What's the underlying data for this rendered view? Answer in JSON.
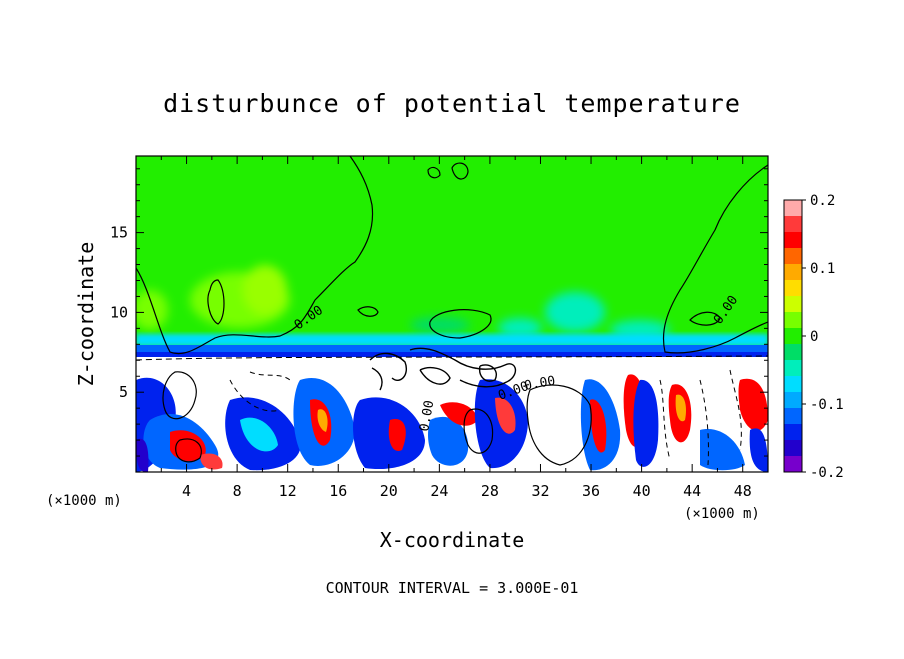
{
  "chart_data": {
    "type": "heatmap",
    "title": "disturbunce of potential temperature",
    "xlabel": "X-coordinate",
    "ylabel": "Z-coordinate",
    "x_unit": "(×1000 m)",
    "z_unit": "(×1000 m)",
    "xlim": [
      0,
      50
    ],
    "ylim": [
      0,
      19.8
    ],
    "x_ticks": [
      4,
      8,
      12,
      16,
      20,
      24,
      28,
      32,
      36,
      40,
      44,
      48
    ],
    "y_ticks": [
      5,
      10,
      15
    ],
    "footer": "CONTOUR INTERVAL = 3.000E-01",
    "contour_interval": 0.3,
    "contour_labels": [
      "0.00",
      "0.00",
      "0.00",
      "0.00",
      "0.00"
    ],
    "colorbar": {
      "range": [
        -0.2,
        0.2
      ],
      "ticks": [
        "0.2",
        "0.1",
        "0",
        "-0.1",
        "-0.2"
      ],
      "colors": [
        "#ffaaaa",
        "#ff3a3a",
        "#ff0000",
        "#ff6600",
        "#ffaa00",
        "#ffdd00",
        "#ccff00",
        "#77ff00",
        "#22ee00",
        "#00dd66",
        "#00eebb",
        "#00ddff",
        "#00aaff",
        "#0066ff",
        "#0022ee",
        "#2200cc",
        "#7700cc"
      ]
    },
    "layers": {
      "upper": "near 0, green, with slightly positive patches around x=8-14 and slightly negative patches around x=32-36, z~9-11",
      "lower": "z below ~7.3: strong mixed positive and negative disturbances"
    }
  }
}
